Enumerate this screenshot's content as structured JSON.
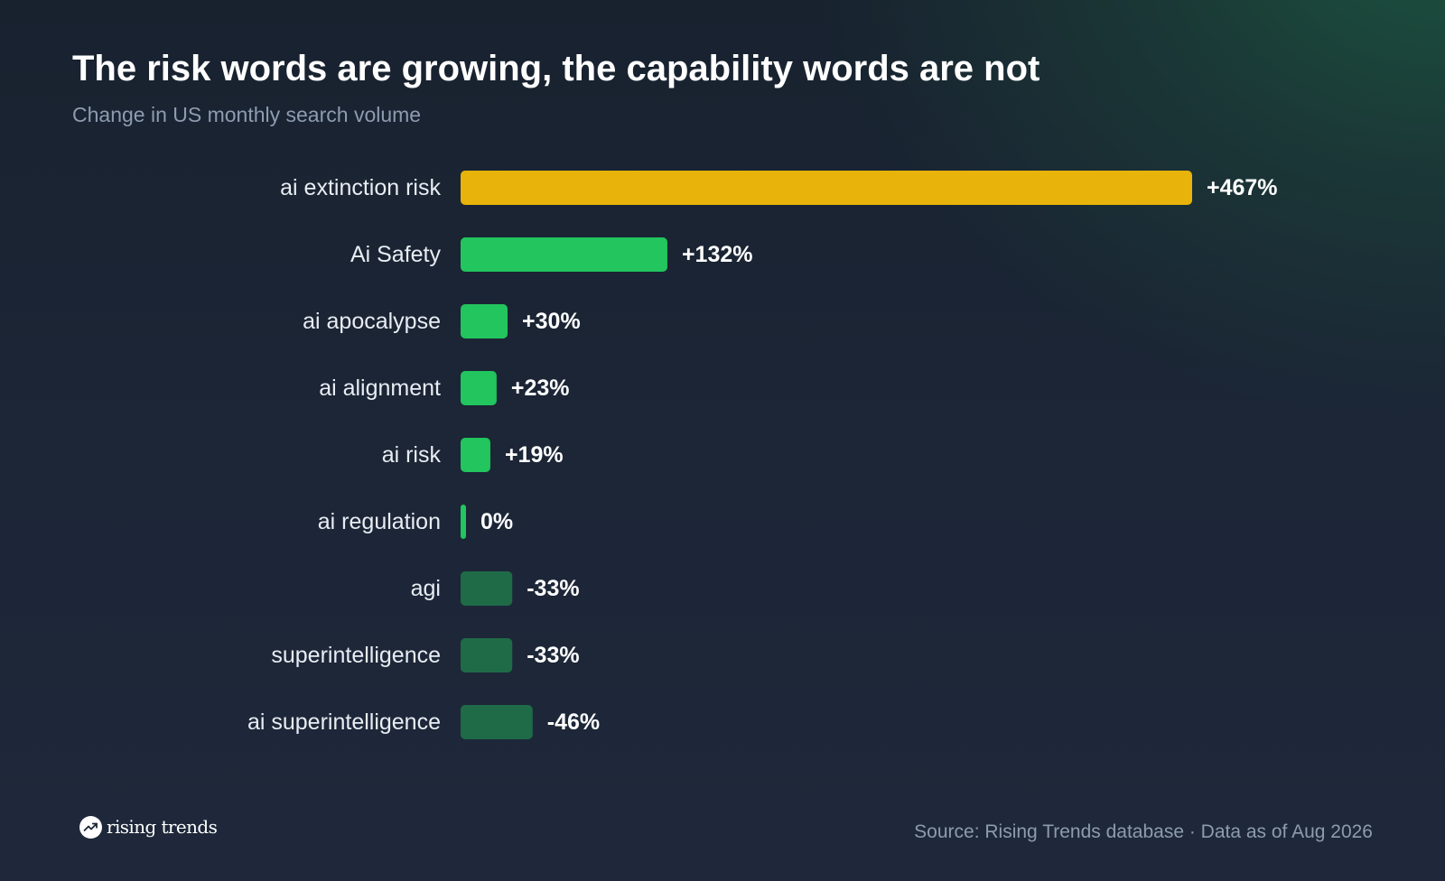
{
  "title": "The risk words are growing, the capability words are not",
  "subtitle": "Change in US monthly search volume",
  "chart_data": {
    "type": "bar",
    "orientation": "horizontal",
    "categories": [
      "ai extinction risk",
      "Ai Safety",
      "ai apocalypse",
      "ai alignment",
      "ai risk",
      "ai regulation",
      "agi",
      "superintelligence",
      "ai superintelligence"
    ],
    "values": [
      467,
      132,
      30,
      23,
      19,
      0,
      -33,
      -33,
      -46
    ],
    "value_labels": [
      "+467%",
      "+132%",
      "+30%",
      "+23%",
      "+19%",
      "0%",
      "-33%",
      "-33%",
      "-46%"
    ],
    "unit": "%",
    "bar_length_encodes": "absolute value",
    "colors": {
      "highlight": "#e8b30a",
      "positive": "#22c55e",
      "negative": "#1f6b47"
    },
    "highlight_index": 0,
    "legend": "none",
    "grid": false,
    "xlim": [
      0,
      467
    ]
  },
  "brand": {
    "name": "rising trends",
    "icon": "trend-up-icon"
  },
  "source": "Source: Rising Trends database · Data as of Aug 2026"
}
